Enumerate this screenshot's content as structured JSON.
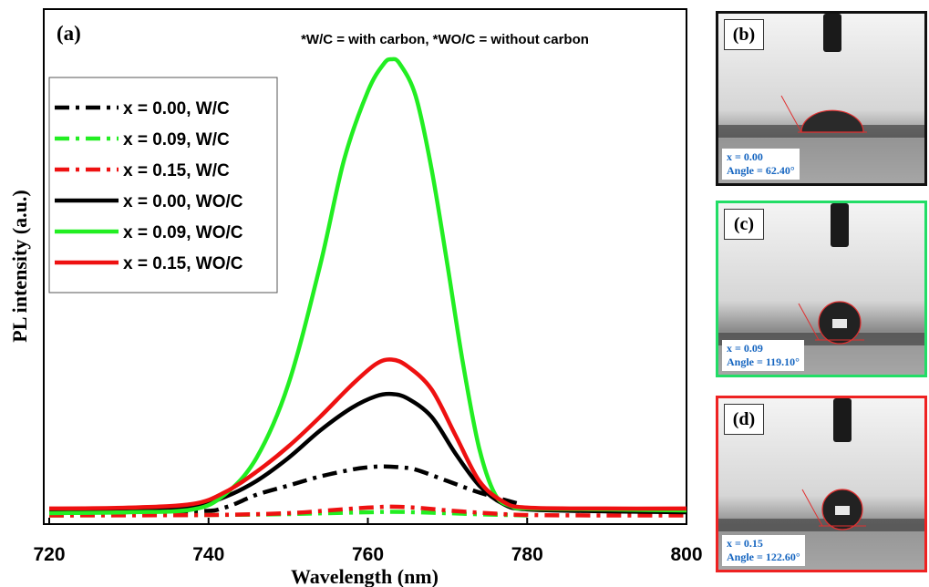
{
  "chart_data": {
    "type": "line",
    "panel_label": "(a)",
    "note": "*W/C = with carbon, *WO/C = without carbon",
    "xlabel": "Wavelength (nm)",
    "ylabel": "PL intensity (a.u.)",
    "xlim": [
      720,
      800
    ],
    "ylim": [
      0,
      1.0
    ],
    "xticks": [
      "720",
      "740",
      "760",
      "780",
      "800"
    ],
    "grid": false,
    "legend_position": "upper-left",
    "series": [
      {
        "name": "x = 0.00, W/C",
        "color": "#000000",
        "style": "dashdot",
        "x": [
          720,
          738,
          742,
          746,
          750,
          754,
          758,
          760,
          762,
          764,
          766,
          770,
          774,
          778,
          779
        ],
        "y": [
          0.012,
          0.014,
          0.022,
          0.05,
          0.07,
          0.09,
          0.105,
          0.11,
          0.112,
          0.11,
          0.105,
          0.08,
          0.055,
          0.035,
          0.03
        ]
      },
      {
        "name": "x = 0.09, W/C",
        "color": "#22ee22",
        "style": "dashdot",
        "x": [
          720,
          740,
          750,
          755,
          760,
          763,
          766,
          770,
          775,
          780
        ],
        "y": [
          0.005,
          0.006,
          0.008,
          0.01,
          0.012,
          0.013,
          0.012,
          0.01,
          0.007,
          0.005
        ]
      },
      {
        "name": "x = 0.15, W/C",
        "color": "#ee1111",
        "style": "dashdot",
        "x": [
          720,
          740,
          750,
          755,
          760,
          763,
          766,
          770,
          775,
          780,
          790,
          800
        ],
        "y": [
          0.005,
          0.006,
          0.01,
          0.016,
          0.022,
          0.024,
          0.022,
          0.016,
          0.01,
          0.006,
          0.005,
          0.005
        ]
      },
      {
        "name": "x = 0.00, WO/C",
        "color": "#000000",
        "style": "solid",
        "x": [
          720,
          730,
          738,
          742,
          746,
          750,
          754,
          758,
          761,
          763,
          765,
          768,
          771,
          774,
          777,
          780,
          790,
          800
        ],
        "y": [
          0.018,
          0.02,
          0.025,
          0.045,
          0.08,
          0.13,
          0.19,
          0.24,
          0.265,
          0.27,
          0.26,
          0.22,
          0.14,
          0.07,
          0.03,
          0.018,
          0.014,
          0.012
        ]
      },
      {
        "name": "x = 0.09, WO/C",
        "color": "#22ee22",
        "style": "solid",
        "x": [
          720,
          730,
          738,
          742,
          746,
          750,
          754,
          757,
          760,
          762,
          763,
          764,
          766,
          768,
          770,
          772,
          774,
          776,
          778,
          780,
          790,
          800
        ],
        "y": [
          0.01,
          0.012,
          0.018,
          0.05,
          0.13,
          0.29,
          0.55,
          0.78,
          0.93,
          0.99,
          1.0,
          0.99,
          0.92,
          0.76,
          0.55,
          0.33,
          0.15,
          0.05,
          0.025,
          0.02,
          0.018,
          0.016
        ]
      },
      {
        "name": "x = 0.15, WO/C",
        "color": "#ee1111",
        "style": "solid",
        "x": [
          720,
          730,
          738,
          742,
          746,
          750,
          754,
          758,
          761,
          763,
          765,
          768,
          771,
          774,
          777,
          780,
          790,
          800
        ],
        "y": [
          0.02,
          0.022,
          0.03,
          0.055,
          0.1,
          0.155,
          0.22,
          0.29,
          0.335,
          0.345,
          0.33,
          0.28,
          0.18,
          0.08,
          0.035,
          0.022,
          0.02,
          0.02
        ]
      }
    ]
  },
  "photos": [
    {
      "label": "(b)",
      "x_text": "x = 0.00",
      "angle_text": "Angle = 62.40°",
      "border": "#111111"
    },
    {
      "label": "(c)",
      "x_text": "x = 0.09",
      "angle_text": "Angle = 119.10°",
      "border": "#22dd66"
    },
    {
      "label": "(d)",
      "x_text": "x = 0.15",
      "angle_text": "Angle = 122.60°",
      "border": "#ee2222"
    }
  ]
}
